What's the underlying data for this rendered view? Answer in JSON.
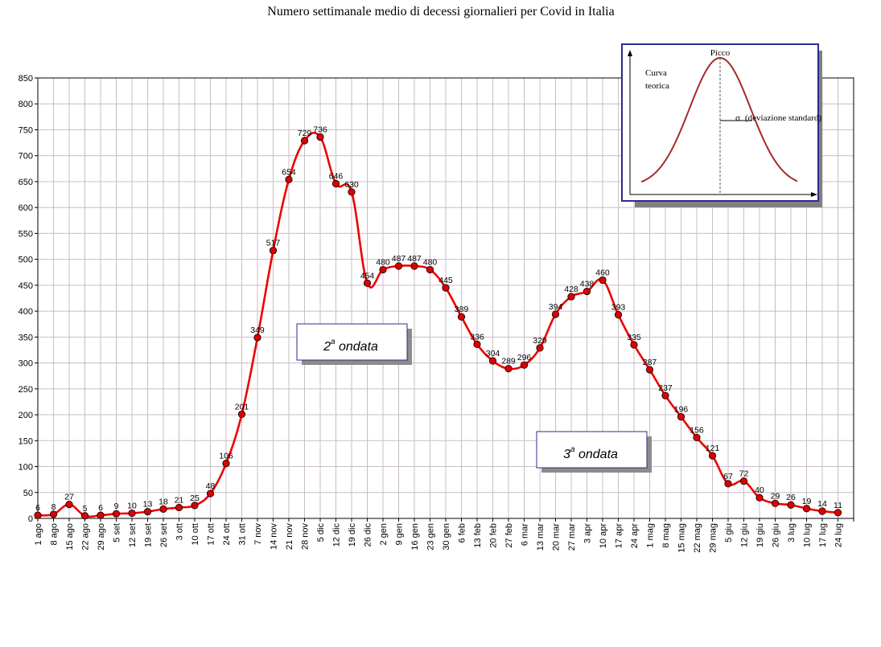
{
  "chart_data": {
    "type": "line",
    "title": "Numero settimanale medio di decessi giornalieri per Covid in Italia",
    "categories": [
      "1 ago",
      "8 ago",
      "15 ago",
      "22 ago",
      "29 ago",
      "5 set",
      "12 set",
      "19 set",
      "26 set",
      "3 ott",
      "10 ott",
      "17 ott",
      "24 ott",
      "31 ott",
      "7 nov",
      "14 nov",
      "21 nov",
      "28 nov",
      "5 dic",
      "12 dic",
      "19 dic",
      "26 dic",
      "2 gen",
      "9 gen",
      "16 gen",
      "23 gen",
      "30 gen",
      "6 feb",
      "13 feb",
      "20 feb",
      "27 feb",
      "6 mar",
      "13 mar",
      "20 mar",
      "27 mar",
      "3 apr",
      "10 apr",
      "17 apr",
      "24 apr",
      "1 mag",
      "8 mag",
      "15 mag",
      "22 mag",
      "29 mag",
      "5 giu",
      "12 giu",
      "19 giu",
      "26 giu",
      "3 lug",
      "10 lug",
      "17 lug",
      "24 lug"
    ],
    "values": [
      6,
      8,
      27,
      5,
      6,
      9,
      10,
      13,
      18,
      21,
      25,
      48,
      106,
      201,
      349,
      517,
      654,
      729,
      736,
      646,
      630,
      454,
      480,
      487,
      487,
      480,
      445,
      389,
      336,
      304,
      289,
      296,
      329,
      394,
      428,
      438,
      460,
      393,
      335,
      287,
      237,
      196,
      156,
      121,
      67,
      72,
      40,
      29,
      26,
      19,
      14,
      11
    ],
    "ylim": [
      0,
      850
    ],
    "yticks": [
      0,
      50,
      100,
      150,
      200,
      250,
      300,
      350,
      400,
      450,
      500,
      550,
      600,
      650,
      700,
      750,
      800,
      850
    ],
    "grid": true,
    "line_color": "#ee0000",
    "marker_color": "#dd0000",
    "annotations": [
      {
        "text_main": "2",
        "text_sup": "a",
        "text_rest": " ondata"
      },
      {
        "text_main": "3",
        "text_sup": "a",
        "text_rest": " ondata"
      }
    ]
  },
  "inset": {
    "label_peak": "Picco",
    "label_curve_line1": "Curva",
    "label_curve_line2": "teorica",
    "label_sigma": "σ",
    "label_sd": "(deviazione standard)",
    "curve_color": "#a52a2a",
    "border_color": "#2b2b8c"
  }
}
